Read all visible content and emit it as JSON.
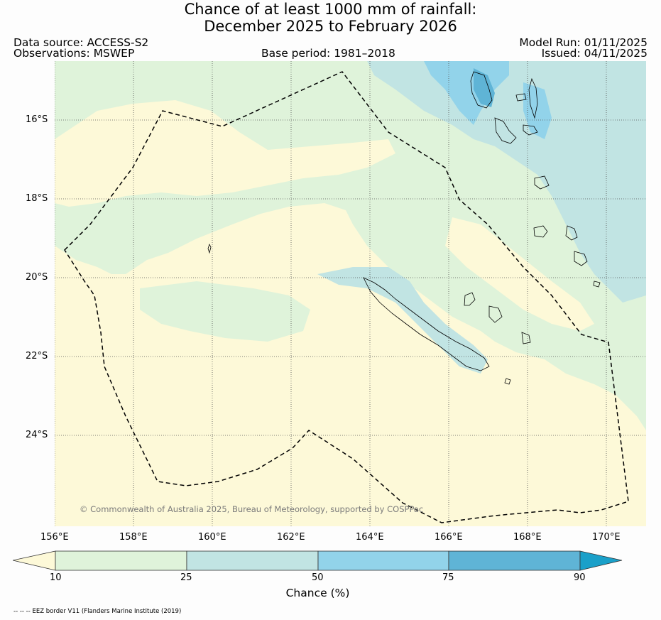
{
  "title": {
    "line1": "Chance of at least 1000 mm of rainfall:",
    "line2": "December 2025 to February 2026"
  },
  "header": {
    "data_source": "Data source: ACCESS-S2",
    "observations": "Observations: MSWEP",
    "base_period": "Base period: 1981–2018",
    "model_run": "Model Run: 01/11/2025",
    "issued": "Issued: 04/11/2025"
  },
  "map": {
    "lon_labels": [
      "156°E",
      "158°E",
      "160°E",
      "162°E",
      "164°E",
      "166°E",
      "168°E",
      "170°E"
    ],
    "lat_labels": [
      "16°S",
      "18°S",
      "20°S",
      "22°S",
      "24°S"
    ],
    "copyright": "© Commonwealth of Australia 2025, Bureau of Meteorology, supported by COSPPac"
  },
  "colorbar": {
    "ticks": [
      "10",
      "25",
      "50",
      "75",
      "90"
    ],
    "label": "Chance (%)",
    "colors": {
      "below_10": "#fdf9d8",
      "c10_25": "#dff3da",
      "c25_50": "#c1e4e3",
      "c50_75": "#92d3ea",
      "c75_90": "#5fb4d6",
      "above_90": "#1aa0c9"
    }
  },
  "footnote": "-- -- -- EEZ border V11 (Flanders Marine Institute (2019)"
}
